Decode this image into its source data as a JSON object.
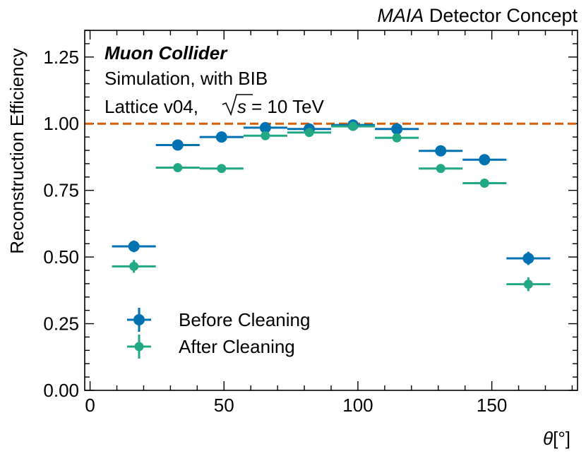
{
  "chart_data": {
    "type": "scatter",
    "title_italic": "MAIA",
    "title_rest": " Detector Concept",
    "xlabel_symbol": "θ",
    "xlabel_unit": "[°]",
    "ylabel": "Reconstruction Efficiency",
    "xlim": [
      -2,
      182
    ],
    "ylim": [
      0,
      1.35
    ],
    "xticks": [
      0,
      50,
      100,
      150
    ],
    "xtick_labels": [
      "0",
      "50",
      "100",
      "150"
    ],
    "yticks": [
      0,
      0.25,
      0.5,
      0.75,
      1.0,
      1.25
    ],
    "ytick_labels": [
      "0.00",
      "0.25",
      "0.50",
      "0.75",
      "1.00",
      "1.25"
    ],
    "reference_line": {
      "y": 1.0,
      "style": "dashed",
      "color": "#d55e00"
    },
    "annotations": {
      "experiment": "Muon Collider",
      "line2": "Simulation, with BIB",
      "line3_pre": "Lattice v04, ",
      "line3_sqrt": "s",
      "line3_post": " = 10 TeV"
    },
    "legend_position": "lower-left",
    "series": [
      {
        "name": "Before Cleaning",
        "color": "#0072b2",
        "x": [
          16.36,
          32.73,
          49.09,
          65.45,
          81.82,
          98.18,
          114.55,
          130.91,
          147.27,
          163.64
        ],
        "x_err": [
          8.18,
          8.18,
          8.18,
          8.18,
          8.18,
          8.18,
          8.18,
          8.18,
          8.18,
          8.18
        ],
        "y": [
          0.54,
          0.92,
          0.95,
          0.985,
          0.98,
          0.995,
          0.98,
          0.898,
          0.865,
          0.495
        ],
        "y_err": [
          0.022,
          0.009,
          0.007,
          0.005,
          0.005,
          0.004,
          0.006,
          0.01,
          0.012,
          0.025
        ]
      },
      {
        "name": "After Cleaning",
        "color": "#22a884",
        "x": [
          16.36,
          32.73,
          49.09,
          65.45,
          81.82,
          98.18,
          114.55,
          130.91,
          147.27,
          163.64
        ],
        "x_err": [
          8.18,
          8.18,
          8.18,
          8.18,
          8.18,
          8.18,
          8.18,
          8.18,
          8.18,
          8.18
        ],
        "y": [
          0.465,
          0.835,
          0.832,
          0.955,
          0.967,
          0.99,
          0.947,
          0.832,
          0.777,
          0.398
        ],
        "y_err": [
          0.024,
          0.014,
          0.013,
          0.008,
          0.007,
          0.005,
          0.009,
          0.013,
          0.016,
          0.026
        ]
      }
    ]
  }
}
